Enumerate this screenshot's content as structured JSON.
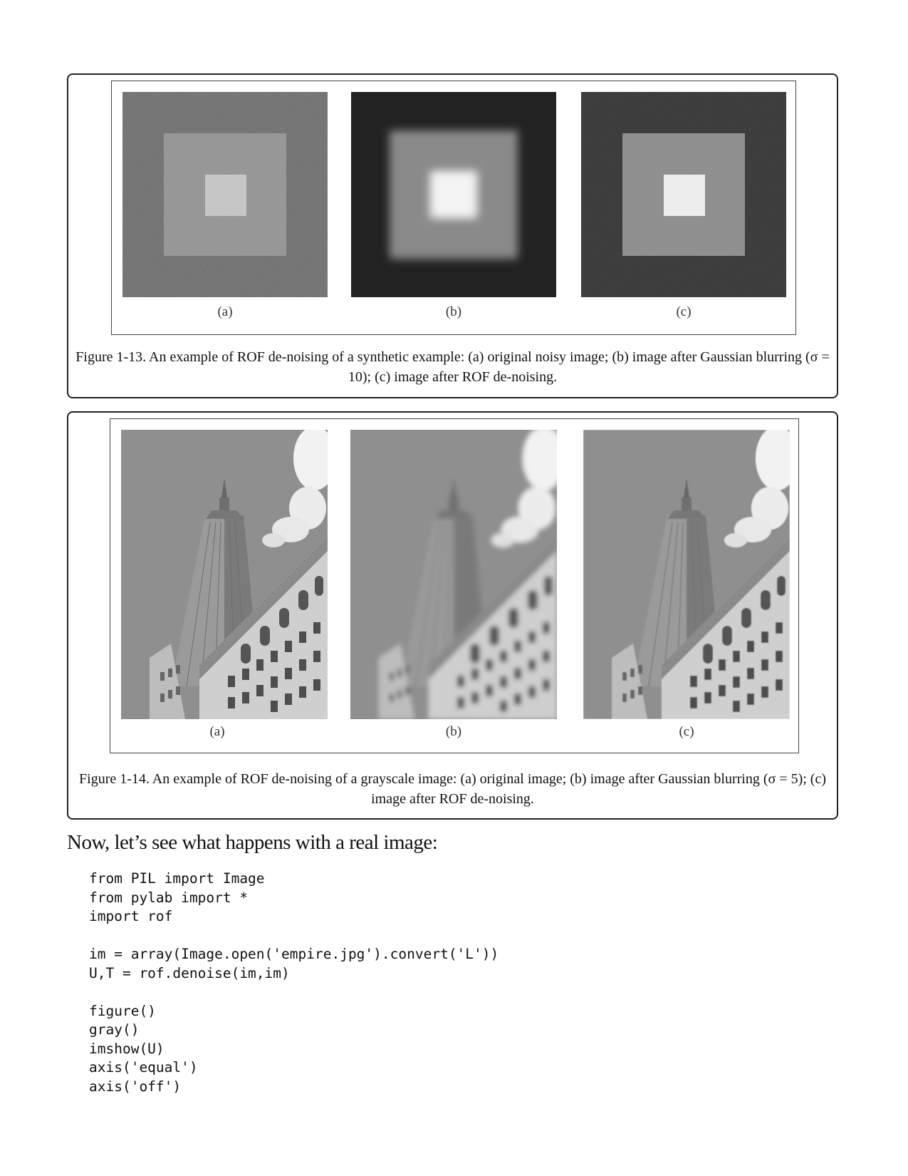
{
  "figure_13": {
    "panel_labels": [
      "(a)",
      "(b)",
      "(c)"
    ],
    "caption": "Figure 1-13. An example of ROF de-noising of a synthetic example: (a) original noisy image; (b) image after Gaussian blurring (σ = 10); (c) image after ROF de-noising."
  },
  "figure_14": {
    "panel_labels": [
      "(a)",
      "(b)",
      "(c)"
    ],
    "caption": "Figure 1-14. An example of ROF de-noising of a grayscale image: (a) original image; (b) image after Gaussian blurring (σ = 5); (c) image after ROF de-noising."
  },
  "body": {
    "intro": "Now, let’s see what happens with a real image:"
  },
  "code": {
    "lines": [
      "from PIL import Image",
      "from pylab import *",
      "import rof",
      "",
      "im = array(Image.open('empire.jpg').convert('L'))",
      "U,T = rof.denoise(im,im)",
      "",
      "figure()",
      "gray()",
      "imshow(U)",
      "axis('equal')",
      "axis('off')"
    ]
  }
}
